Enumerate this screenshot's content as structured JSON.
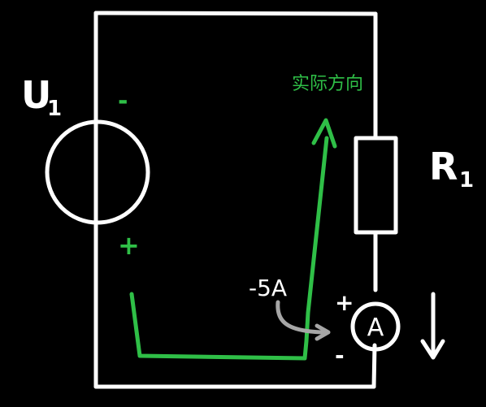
{
  "source_label": "U",
  "source_subscript": "1",
  "source_minus": "-",
  "source_plus": "+",
  "resistor_label": "R",
  "resistor_subscript": "1",
  "actual_direction_label": "实际方向",
  "current_reading": "-5A",
  "ammeter_symbol": "A",
  "ammeter_plus": "+",
  "ammeter_minus": "-",
  "colors": {
    "background": "#000000",
    "wire": "#ffffff",
    "actual_direction": "#2fbf47",
    "reference_arrow": "#a6a6a6"
  }
}
